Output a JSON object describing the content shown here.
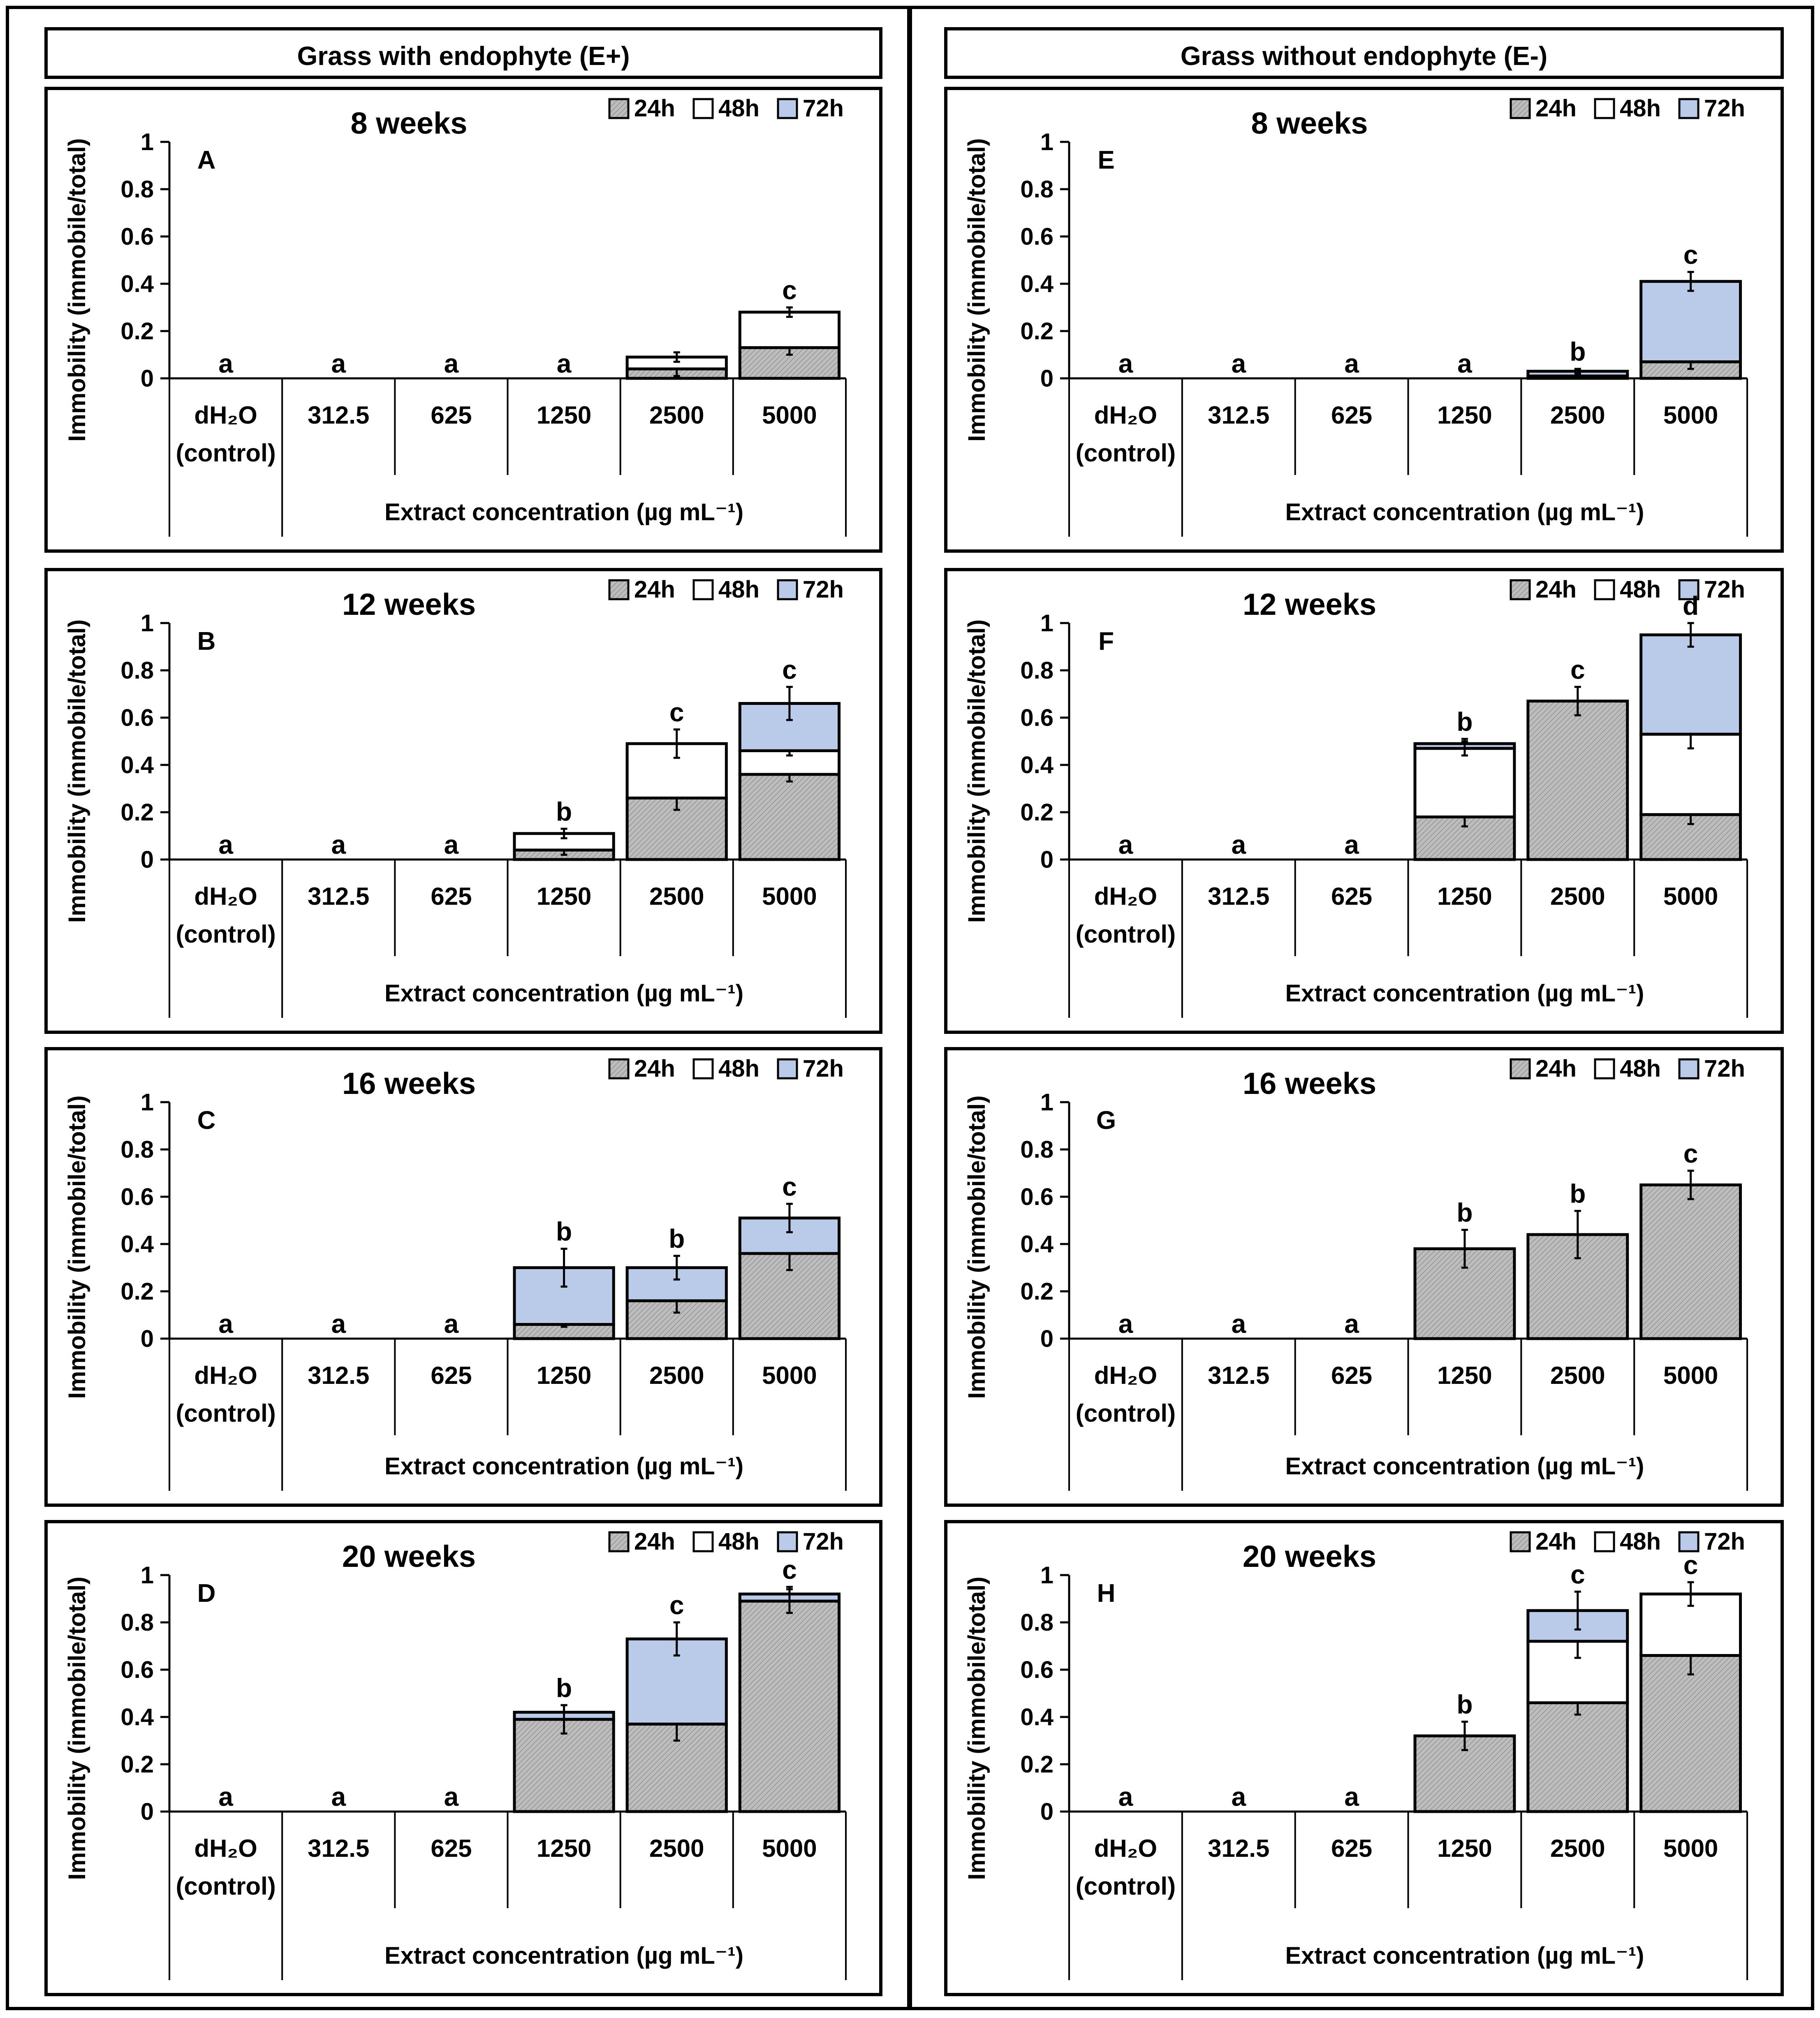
{
  "columns": [
    {
      "header": "Grass with endophyte (E+)"
    },
    {
      "header": "Grass without endophyte (E-)"
    }
  ],
  "common": {
    "ylabel": "Immobility (immobile/total)",
    "xlabel": "Extract concentration (µg mL⁻¹)",
    "categories": [
      "dH₂O (control)",
      "312.5",
      "625",
      "1250",
      "2500",
      "5000"
    ],
    "legend": [
      "24h",
      "48h",
      "72h"
    ],
    "y_ticks": [
      0,
      0.2,
      0.4,
      0.6,
      0.8,
      1
    ]
  },
  "colors": {
    "24h": "#b5b5b5",
    "48h": "#ffffff",
    "72h": "#b9cbe8"
  },
  "chart_data": [
    {
      "type": "bar",
      "stacked": true,
      "letter": "A",
      "title": "8 weeks",
      "ylim": [
        0,
        1
      ],
      "categories": [
        "dH₂O (control)",
        "312.5",
        "625",
        "1250",
        "2500",
        "5000"
      ],
      "series": [
        {
          "name": "24h",
          "values": [
            0,
            0,
            0,
            0,
            0.04,
            0.13
          ],
          "errors": [
            0,
            0,
            0,
            0,
            0.03,
            0.03
          ]
        },
        {
          "name": "48h",
          "values": [
            0,
            0,
            0,
            0,
            0.05,
            0.15
          ],
          "errors": [
            0,
            0,
            0,
            0,
            0.02,
            0.02
          ]
        },
        {
          "name": "72h",
          "values": [
            0,
            0,
            0,
            0,
            0,
            0
          ],
          "errors": [
            0,
            0,
            0,
            0,
            0,
            0
          ]
        }
      ],
      "significance": [
        "a",
        "a",
        "a",
        "a",
        "",
        "c"
      ]
    },
    {
      "type": "bar",
      "stacked": true,
      "letter": "B",
      "title": "12 weeks",
      "ylim": [
        0,
        1
      ],
      "categories": [
        "dH₂O (control)",
        "312.5",
        "625",
        "1250",
        "2500",
        "5000"
      ],
      "series": [
        {
          "name": "24h",
          "values": [
            0,
            0,
            0,
            0.04,
            0.26,
            0.36
          ],
          "errors": [
            0,
            0,
            0,
            0.02,
            0.05,
            0.03
          ]
        },
        {
          "name": "48h",
          "values": [
            0,
            0,
            0,
            0.07,
            0.23,
            0.1
          ],
          "errors": [
            0,
            0,
            0,
            0.02,
            0.06,
            0.02
          ]
        },
        {
          "name": "72h",
          "values": [
            0,
            0,
            0,
            0,
            0,
            0.2
          ],
          "errors": [
            0,
            0,
            0,
            0,
            0,
            0.07
          ]
        }
      ],
      "significance": [
        "a",
        "a",
        "a",
        "b",
        "c",
        "c"
      ]
    },
    {
      "type": "bar",
      "stacked": true,
      "letter": "C",
      "title": "16 weeks",
      "ylim": [
        0,
        1
      ],
      "categories": [
        "dH₂O (control)",
        "312.5",
        "625",
        "1250",
        "2500",
        "5000"
      ],
      "series": [
        {
          "name": "24h",
          "values": [
            0,
            0,
            0,
            0.06,
            0.16,
            0.36
          ],
          "errors": [
            0,
            0,
            0,
            0.01,
            0.05,
            0.07
          ]
        },
        {
          "name": "48h",
          "values": [
            0,
            0,
            0,
            0,
            0,
            0
          ],
          "errors": [
            0,
            0,
            0,
            0,
            0,
            0
          ]
        },
        {
          "name": "72h",
          "values": [
            0,
            0,
            0,
            0.24,
            0.14,
            0.15
          ],
          "errors": [
            0,
            0,
            0,
            0.08,
            0.05,
            0.06
          ]
        }
      ],
      "significance": [
        "a",
        "a",
        "a",
        "b",
        "b",
        "c"
      ]
    },
    {
      "type": "bar",
      "stacked": true,
      "letter": "D",
      "title": "20 weeks",
      "ylim": [
        0,
        1
      ],
      "categories": [
        "dH₂O (control)",
        "312.5",
        "625",
        "1250",
        "2500",
        "5000"
      ],
      "series": [
        {
          "name": "24h",
          "values": [
            0,
            0,
            0,
            0.39,
            0.37,
            0.89
          ],
          "errors": [
            0,
            0,
            0,
            0.06,
            0.07,
            0.05
          ]
        },
        {
          "name": "48h",
          "values": [
            0,
            0,
            0,
            0,
            0,
            0
          ],
          "errors": [
            0,
            0,
            0,
            0,
            0,
            0
          ]
        },
        {
          "name": "72h",
          "values": [
            0,
            0,
            0,
            0.03,
            0.36,
            0.03
          ],
          "errors": [
            0,
            0,
            0,
            0.03,
            0.07,
            0.03
          ]
        }
      ],
      "significance": [
        "a",
        "a",
        "a",
        "b",
        "c",
        "c"
      ]
    },
    {
      "type": "bar",
      "stacked": true,
      "letter": "E",
      "title": "8 weeks",
      "ylim": [
        0,
        1
      ],
      "categories": [
        "dH₂O (control)",
        "312.5",
        "625",
        "1250",
        "2500",
        "5000"
      ],
      "series": [
        {
          "name": "24h",
          "values": [
            0,
            0,
            0,
            0,
            0.01,
            0.07
          ],
          "errors": [
            0,
            0,
            0,
            0,
            0.01,
            0.03
          ]
        },
        {
          "name": "48h",
          "values": [
            0,
            0,
            0,
            0,
            0,
            0
          ],
          "errors": [
            0,
            0,
            0,
            0,
            0,
            0
          ]
        },
        {
          "name": "72h",
          "values": [
            0,
            0,
            0,
            0,
            0.02,
            0.34
          ],
          "errors": [
            0,
            0,
            0,
            0,
            0.01,
            0.04
          ]
        }
      ],
      "significance": [
        "a",
        "a",
        "a",
        "a",
        "b",
        "c"
      ]
    },
    {
      "type": "bar",
      "stacked": true,
      "letter": "F",
      "title": "12 weeks",
      "ylim": [
        0,
        1
      ],
      "categories": [
        "dH₂O (control)",
        "312.5",
        "625",
        "1250",
        "2500",
        "5000"
      ],
      "series": [
        {
          "name": "24h",
          "values": [
            0,
            0,
            0,
            0.18,
            0.67,
            0.19
          ],
          "errors": [
            0,
            0,
            0,
            0.04,
            0.06,
            0.04
          ]
        },
        {
          "name": "48h",
          "values": [
            0,
            0,
            0,
            0.29,
            0,
            0.34
          ],
          "errors": [
            0,
            0,
            0,
            0.03,
            0,
            0.06
          ]
        },
        {
          "name": "72h",
          "values": [
            0,
            0,
            0,
            0.02,
            0,
            0.42
          ],
          "errors": [
            0,
            0,
            0,
            0.02,
            0,
            0.05
          ]
        }
      ],
      "significance": [
        "a",
        "a",
        "a",
        "b",
        "c",
        "d"
      ]
    },
    {
      "type": "bar",
      "stacked": true,
      "letter": "G",
      "title": "16 weeks",
      "ylim": [
        0,
        1
      ],
      "categories": [
        "dH₂O (control)",
        "312.5",
        "625",
        "1250",
        "2500",
        "5000"
      ],
      "series": [
        {
          "name": "24h",
          "values": [
            0,
            0,
            0,
            0.38,
            0.44,
            0.65
          ],
          "errors": [
            0,
            0,
            0,
            0.08,
            0.1,
            0.06
          ]
        },
        {
          "name": "48h",
          "values": [
            0,
            0,
            0,
            0,
            0,
            0
          ],
          "errors": [
            0,
            0,
            0,
            0,
            0,
            0
          ]
        },
        {
          "name": "72h",
          "values": [
            0,
            0,
            0,
            0,
            0,
            0
          ],
          "errors": [
            0,
            0,
            0,
            0,
            0,
            0
          ]
        }
      ],
      "significance": [
        "a",
        "a",
        "a",
        "b",
        "b",
        "c"
      ]
    },
    {
      "type": "bar",
      "stacked": true,
      "letter": "H",
      "title": "20 weeks",
      "ylim": [
        0,
        1
      ],
      "categories": [
        "dH₂O (control)",
        "312.5",
        "625",
        "1250",
        "2500",
        "5000"
      ],
      "series": [
        {
          "name": "24h",
          "values": [
            0,
            0,
            0,
            0.32,
            0.46,
            0.66
          ],
          "errors": [
            0,
            0,
            0,
            0.06,
            0.05,
            0.08
          ]
        },
        {
          "name": "48h",
          "values": [
            0,
            0,
            0,
            0,
            0.26,
            0.26
          ],
          "errors": [
            0,
            0,
            0,
            0,
            0.07,
            0.05
          ]
        },
        {
          "name": "72h",
          "values": [
            0,
            0,
            0,
            0,
            0.13,
            0
          ],
          "errors": [
            0,
            0,
            0,
            0,
            0.08,
            0
          ]
        }
      ],
      "significance": [
        "a",
        "a",
        "a",
        "b",
        "c",
        "c"
      ]
    }
  ]
}
